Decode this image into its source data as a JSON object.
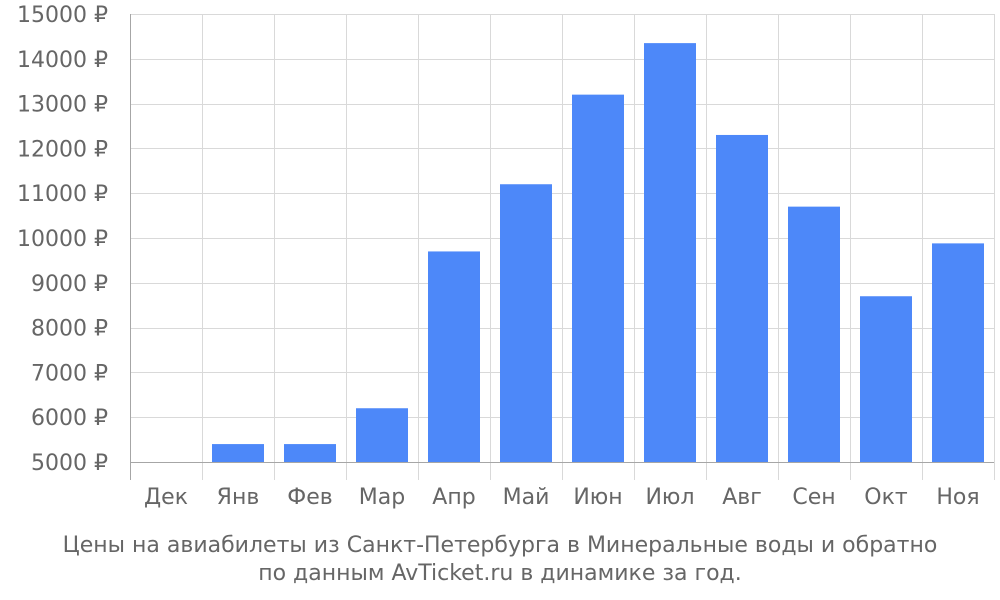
{
  "chart_data": {
    "type": "bar",
    "categories": [
      "Дек",
      "Янв",
      "Фев",
      "Мар",
      "Апр",
      "Май",
      "Июн",
      "Июл",
      "Авг",
      "Сен",
      "Окт",
      "Ноя"
    ],
    "values": [
      null,
      5400,
      5400,
      6200,
      9700,
      11200,
      13200,
      14350,
      12300,
      10700,
      8700,
      9880
    ],
    "ylim": [
      5000,
      15000
    ],
    "yticks": [
      5000,
      6000,
      7000,
      8000,
      9000,
      10000,
      11000,
      12000,
      13000,
      14000,
      15000
    ],
    "ytick_labels": [
      "5000 ₽",
      "6000 ₽",
      "7000 ₽",
      "8000 ₽",
      "9000 ₽",
      "10000 ₽",
      "11000 ₽",
      "12000 ₽",
      "13000 ₽",
      "14000 ₽",
      "15000 ₽"
    ],
    "grid": true,
    "bar_color": "#4d88f9",
    "caption_lines": [
      "Цены на авиабилеты из Санкт-Петербурга в Минеральные воды и обратно",
      "по данным AvTicket.ru в динамике за год."
    ]
  }
}
